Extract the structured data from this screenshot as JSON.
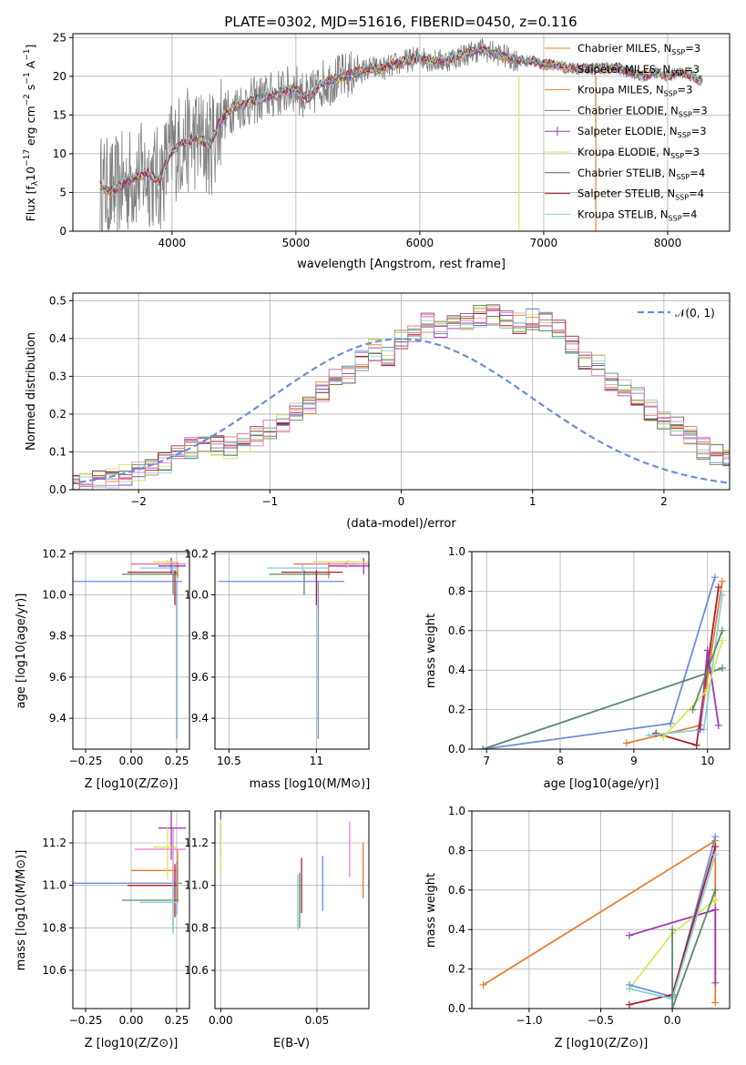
{
  "figure_title": "PLATE=0302, MJD=51616, FIBERID=0450, z=0.116",
  "colors": {
    "chabrier_miles": "#6c8ede",
    "salpeter_miles": "#d8a5a5",
    "kroupa_miles": "#e77d2e",
    "chabrier_elodie": "#7f7f7f",
    "salpeter_elodie": "#9c39b4",
    "kroupa_elodie": "#d6e85a",
    "chabrier_stelib": "#5f5f5f",
    "salpeter_stelib": "#ab1e2a",
    "kroupa_stelib": "#86d1dd",
    "normal_curve": "#6c8ede",
    "green_model": "#5a8a6a",
    "pink_model": "#e87fc8"
  },
  "chart_data": [
    {
      "id": "spectrum",
      "type": "line",
      "title": "PLATE=0302, MJD=51616, FIBERID=0450, z=0.116",
      "xlabel": "wavelength [Angstrom, rest frame]",
      "ylabel": "Flux [f_λ 10^-17 erg cm^-2 s^-1 A^-1]",
      "xlim": [
        3200,
        8500
      ],
      "ylim": [
        0,
        25.5
      ],
      "xticks": [
        4000,
        5000,
        6000,
        7000,
        8000
      ],
      "yticks": [
        0,
        5,
        10,
        15,
        20,
        25
      ],
      "legend_position": "right",
      "series_names": [
        "Chabrier MILES, N_SSP=3",
        "Salpeter MILES, N_SSP=3",
        "Kroupa MILES, N_SSP=3",
        "Chabrier ELODIE, N_SSP=3",
        "Salpeter ELODIE, N_SSP=3",
        "Kroupa ELODIE, N_SSP=3",
        "Chabrier STELIB, N_SSP=4",
        "Salpeter STELIB, N_SSP=4",
        "Kroupa STELIB, N_SSP=4"
      ],
      "model_continuum": {
        "x": [
          3420,
          3500,
          3600,
          3700,
          3800,
          3900,
          4000,
          4100,
          4200,
          4300,
          4400,
          4500,
          4600,
          4700,
          4800,
          4900,
          5000,
          5100,
          5200,
          5300,
          5400,
          5500,
          5600,
          5700,
          5800,
          5900,
          6000,
          6100,
          6200,
          6300,
          6400,
          6500,
          6600,
          6700,
          6800,
          6900,
          7000,
          7100,
          7200,
          7300,
          7400,
          7500,
          7600,
          7700,
          7800,
          7900,
          8000,
          8100,
          8200,
          8250
        ],
        "y": [
          5.8,
          5.0,
          6.0,
          7.0,
          7.5,
          6.5,
          10.5,
          11.5,
          12.0,
          11.0,
          14.5,
          16.0,
          16.5,
          17.0,
          17.5,
          18.0,
          18.5,
          17.0,
          19.0,
          19.5,
          20.0,
          20.5,
          21.0,
          21.0,
          21.5,
          22.0,
          22.5,
          22.0,
          22.0,
          22.5,
          23.0,
          23.5,
          23.0,
          22.5,
          22.0,
          22.0,
          21.5,
          21.5,
          21.0,
          21.0,
          21.0,
          21.0,
          21.0,
          20.5,
          20.0,
          20.5,
          20.0,
          20.5,
          20.0,
          19.5
        ]
      },
      "data_range_x": [
        3420,
        8280
      ],
      "data_noise_amplitude": 7
    },
    {
      "id": "residuals",
      "type": "line",
      "xlabel": "(data-model)/error",
      "ylabel": "Normed distribution",
      "xlim": [
        -2.5,
        2.5
      ],
      "ylim": [
        0,
        0.52
      ],
      "xticks": [
        -2,
        -1,
        0,
        1,
        2
      ],
      "yticks": [
        0.0,
        0.1,
        0.2,
        0.3,
        0.4,
        0.5
      ],
      "legend": "N(0,1)",
      "legend_position": "top-right",
      "bin_width": 0.1,
      "bin_start": -2.5,
      "histogram_mean": [
        0.015,
        0.018,
        0.025,
        0.03,
        0.038,
        0.045,
        0.055,
        0.07,
        0.09,
        0.11,
        0.13,
        0.12,
        0.11,
        0.12,
        0.14,
        0.16,
        0.18,
        0.2,
        0.22,
        0.26,
        0.29,
        0.3,
        0.34,
        0.37,
        0.35,
        0.4,
        0.42,
        0.44,
        0.43,
        0.44,
        0.45,
        0.46,
        0.46,
        0.45,
        0.44,
        0.45,
        0.44,
        0.42,
        0.38,
        0.34,
        0.33,
        0.28,
        0.27,
        0.24,
        0.21,
        0.18,
        0.17,
        0.14,
        0.11,
        0.09,
        0.075,
        0.06,
        0.05,
        0.045,
        0.04,
        0.035,
        0.03,
        0.025,
        0.02,
        0.018,
        0.015
      ]
    },
    {
      "id": "age_vs_Z",
      "type": "scatter",
      "xlabel": "Z [log10(Z/Z⊙)]",
      "ylabel": "age [log10(age/yr)]",
      "xlim": [
        -0.32,
        0.32
      ],
      "ylim": [
        9.25,
        10.21
      ],
      "xticks": [
        -0.25,
        0.0,
        0.25
      ],
      "yticks": [
        9.4,
        9.6,
        9.8,
        10.0,
        10.2
      ]
    },
    {
      "id": "age_vs_mass",
      "type": "scatter",
      "xlabel": "mass [log10(M/M⊙)]",
      "xlim": [
        10.42,
        11.3
      ],
      "ylim": [
        9.25,
        10.21
      ],
      "xticks": [
        10.5,
        11.0
      ],
      "yticks": [
        9.4,
        9.6,
        9.8,
        10.0,
        10.2
      ]
    },
    {
      "id": "weight_vs_age",
      "type": "line",
      "xlabel": "age [log10(age/yr)]",
      "ylabel": "mass weight",
      "xlim": [
        6.8,
        10.3
      ],
      "ylim": [
        0,
        1.0
      ],
      "xticks": [
        7,
        8,
        9,
        10
      ],
      "yticks": [
        0.0,
        0.2,
        0.4,
        0.6,
        0.8,
        1.0
      ]
    },
    {
      "id": "mass_vs_Z",
      "type": "scatter",
      "xlabel": "Z [log10(Z/Z⊙)]",
      "ylabel": "mass [log10(M/M⊙)]",
      "xlim": [
        -0.32,
        0.32
      ],
      "ylim": [
        10.42,
        11.35
      ],
      "xticks": [
        -0.25,
        0.0,
        0.25
      ],
      "yticks": [
        10.6,
        10.8,
        11.0,
        11.2
      ]
    },
    {
      "id": "mass_vs_EBV",
      "type": "scatter",
      "xlabel": "E(B-V)",
      "xlim": [
        -0.003,
        0.077
      ],
      "ylim": [
        10.42,
        11.35
      ],
      "xticks": [
        0.0,
        0.05
      ],
      "yticks": [
        10.6,
        10.8,
        11.0,
        11.2
      ]
    },
    {
      "id": "weight_vs_Z",
      "type": "line",
      "xlabel": "Z [log10(Z/Z⊙)]",
      "ylabel": "mass weight",
      "xlim": [
        -1.4,
        0.4
      ],
      "ylim": [
        0,
        1.0
      ],
      "xticks": [
        -1.0,
        -0.5,
        0.0
      ],
      "yticks": [
        0.0,
        0.2,
        0.4,
        0.6,
        0.8,
        1.0
      ]
    }
  ]
}
